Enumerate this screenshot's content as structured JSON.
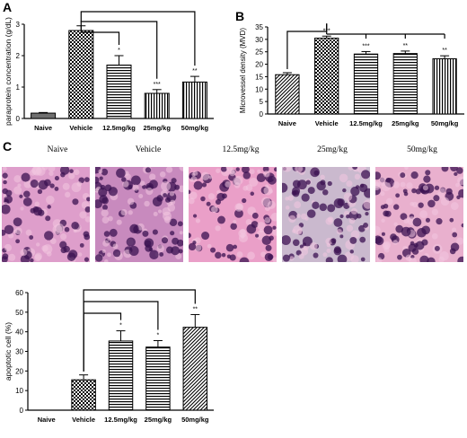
{
  "panel_labels": {
    "a": "A",
    "b": "B",
    "c": "C"
  },
  "micrographs": {
    "labels": [
      "Naive",
      "Vehicle",
      "12.5mg/kg",
      "25mg/kg",
      "50mg/kg"
    ],
    "tints": [
      "#c24fa0",
      "#9a2a88",
      "#d8509a",
      "#9e7fa6",
      "#d76fa6"
    ]
  },
  "chart_data": [
    {
      "type": "bar",
      "panel": "A",
      "ylabel": "paraprotein concentration (g/dL)",
      "xlabel": "",
      "ylim": [
        0,
        3
      ],
      "yticks": [
        0,
        1,
        2,
        3
      ],
      "categories": [
        "Naive",
        "Vehicle",
        "12.5mg/kg",
        "25mg/kg",
        "50mg/kg"
      ],
      "values": [
        0.17,
        2.8,
        1.7,
        0.8,
        1.16
      ],
      "errors": [
        0.02,
        0.15,
        0.3,
        0.12,
        0.18
      ],
      "significance": [
        "",
        "",
        "*",
        "***",
        "**"
      ],
      "fills": [
        "solid",
        "checker",
        "hlines",
        "vlines",
        "vlines"
      ],
      "comparisons": [
        [
          1,
          2
        ],
        [
          1,
          3
        ],
        [
          1,
          4
        ]
      ],
      "grid": false
    },
    {
      "type": "bar",
      "panel": "B",
      "ylabel": "Microvessel density (MVD)",
      "xlabel": "",
      "ylim": [
        0,
        35
      ],
      "yticks": [
        0,
        5,
        10,
        15,
        20,
        25,
        30,
        35
      ],
      "categories": [
        "Naive",
        "Vehicle",
        "12.5mg/kg",
        "25mg/kg",
        "50mg/kg"
      ],
      "values": [
        15.8,
        30.5,
        24.1,
        24.3,
        22.2
      ],
      "errors": [
        0.8,
        0.8,
        1.0,
        1.0,
        1.2
      ],
      "significance": [
        "",
        "***",
        "***",
        "**",
        "**"
      ],
      "fills": [
        "diag",
        "checker",
        "hlines",
        "hlines",
        "vlines"
      ],
      "comparisons": [
        [
          0,
          1
        ],
        [
          1,
          2
        ],
        [
          1,
          3
        ],
        [
          1,
          4
        ]
      ],
      "grid": false
    },
    {
      "type": "bar",
      "panel": "C",
      "ylabel": "apoptotic cell (%)",
      "xlabel": "",
      "ylim": [
        0,
        60
      ],
      "yticks": [
        0,
        10,
        20,
        30,
        40,
        50,
        60
      ],
      "categories": [
        "Naive",
        "Vehicle",
        "12.5mg/kg",
        "25mg/kg",
        "50mg/kg"
      ],
      "values": [
        0,
        15.5,
        35.3,
        32.2,
        42.3
      ],
      "errors": [
        0,
        2.5,
        5.2,
        3.3,
        6.5
      ],
      "significance": [
        "",
        "",
        "*",
        "*",
        "**"
      ],
      "fills": [
        "solid",
        "checker",
        "hlines",
        "hlines",
        "diag"
      ],
      "comparisons": [
        [
          1,
          2
        ],
        [
          1,
          3
        ],
        [
          1,
          4
        ]
      ],
      "grid": false
    }
  ]
}
